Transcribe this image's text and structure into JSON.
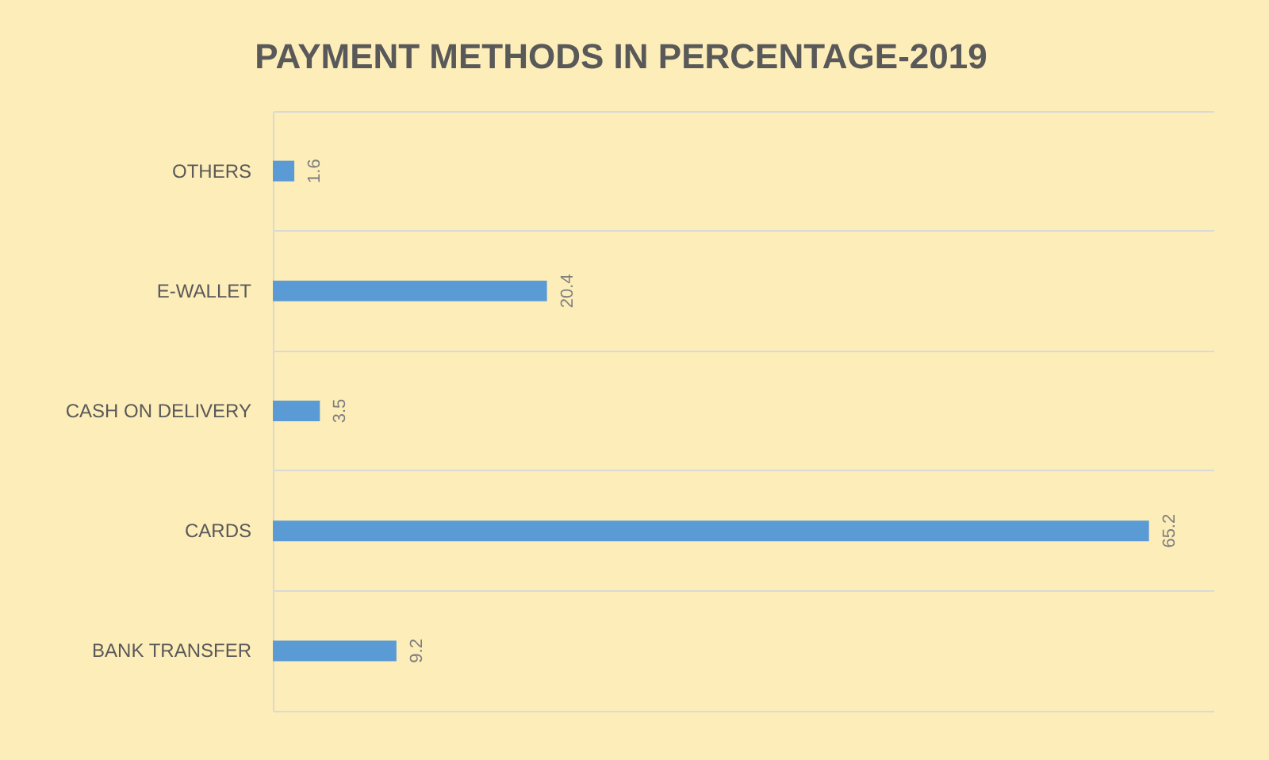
{
  "chart_data": {
    "type": "bar",
    "orientation": "horizontal",
    "title": "PAYMENT METHODS IN PERCENTAGE-2019",
    "categories": [
      "OTHERS",
      "E-WALLET",
      "CASH ON DELIVERY",
      "CARDS",
      "BANK TRANSFER"
    ],
    "values": [
      1.6,
      20.4,
      3.5,
      65.2,
      9.2
    ],
    "color": "#5b9bd5",
    "data_labels": true,
    "grid": "y",
    "tick_labels": "y"
  }
}
